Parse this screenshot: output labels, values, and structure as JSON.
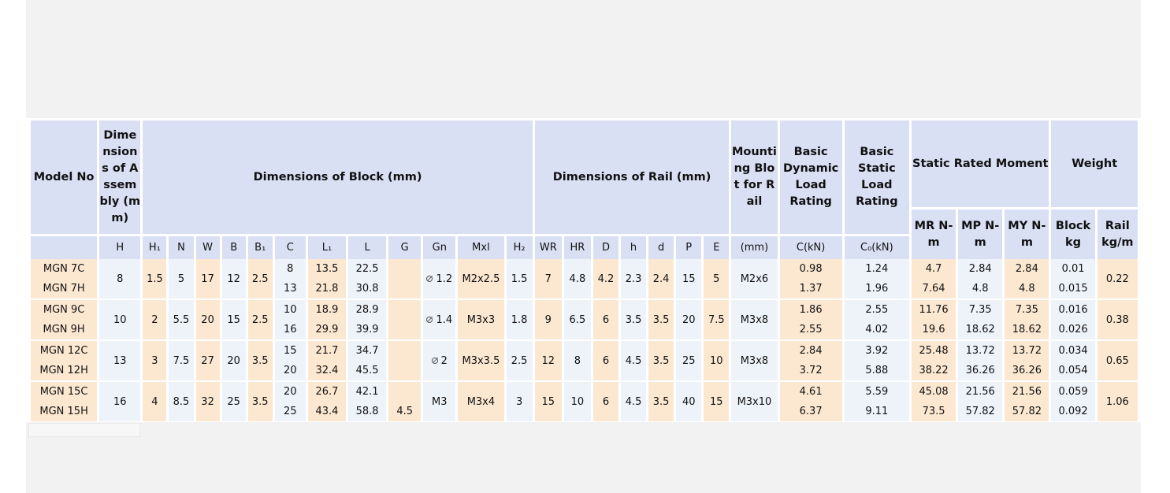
{
  "headers": {
    "model_no": "Model No",
    "assembly": "Dimensions of Assembly (mm)",
    "block": "Dimensions of Block (mm)",
    "rail": "Dimensions of Rail (mm)",
    "bolt": "Mounting Blot for Rail",
    "dynamic": "Basic Dynamic Load Rating",
    "static": "Basic Static Load Rating",
    "moment": "Static Rated Moment",
    "weight": "Weight",
    "mr": "MR N-m",
    "mp": "MP N-m",
    "my": "MY N-m",
    "block_kg": "Block kg",
    "rail_kgm": "Rail kg/m"
  },
  "subheaders": [
    "H",
    "H₁",
    "N",
    "W",
    "B",
    "B₁",
    "C",
    "L₁",
    "L",
    "G",
    "Gn",
    "Mxl",
    "H₂",
    "WR",
    "HR",
    "D",
    "h",
    "d",
    "P",
    "E",
    "(mm)",
    "C(kN)",
    "C₀(kN)"
  ],
  "groups": [
    {
      "H": "8",
      "H1": "1.5",
      "N": "5",
      "W": "17",
      "B": "12",
      "B1": "2.5",
      "Gn": "1.2",
      "Mxl": "M2x2.5",
      "H2": "1.5",
      "WR": "7",
      "HR": "4.8",
      "D": "4.2",
      "h": "2.3",
      "d": "2.4",
      "P": "15",
      "E": "5",
      "bolt": "M2x6",
      "rail_kgm": "0.22",
      "rows": [
        {
          "model": "MGN 7C",
          "C": "8",
          "L1": "13.5",
          "L": "22.5",
          "G": "",
          "Cdyn": "0.98",
          "C0": "1.24",
          "MR": "4.7",
          "MP": "2.84",
          "MY": "2.84",
          "block_kg": "0.01"
        },
        {
          "model": "MGN 7H",
          "C": "13",
          "L1": "21.8",
          "L": "30.8",
          "G": "",
          "Cdyn": "1.37",
          "C0": "1.96",
          "MR": "7.64",
          "MP": "4.8",
          "MY": "4.8",
          "block_kg": "0.015"
        }
      ]
    },
    {
      "H": "10",
      "H1": "2",
      "N": "5.5",
      "W": "20",
      "B": "15",
      "B1": "2.5",
      "Gn": "1.4",
      "Mxl": "M3x3",
      "H2": "1.8",
      "WR": "9",
      "HR": "6.5",
      "D": "6",
      "h": "3.5",
      "d": "3.5",
      "P": "20",
      "E": "7.5",
      "bolt": "M3x8",
      "rail_kgm": "0.38",
      "rows": [
        {
          "model": "MGN 9C",
          "C": "10",
          "L1": "18.9",
          "L": "28.9",
          "G": "",
          "Cdyn": "1.86",
          "C0": "2.55",
          "MR": "11.76",
          "MP": "7.35",
          "MY": "7.35",
          "block_kg": "0.016"
        },
        {
          "model": "MGN 9H",
          "C": "16",
          "L1": "29.9",
          "L": "39.9",
          "G": "",
          "Cdyn": "2.55",
          "C0": "4.02",
          "MR": "19.6",
          "MP": "18.62",
          "MY": "18.62",
          "block_kg": "0.026"
        }
      ]
    },
    {
      "H": "13",
      "H1": "3",
      "N": "7.5",
      "W": "27",
      "B": "20",
      "B1": "3.5",
      "Gn": "2",
      "Mxl": "M3x3.5",
      "H2": "2.5",
      "WR": "12",
      "HR": "8",
      "D": "6",
      "h": "4.5",
      "d": "3.5",
      "P": "25",
      "E": "10",
      "bolt": "M3x8",
      "rail_kgm": "0.65",
      "rows": [
        {
          "model": "MGN 12C",
          "C": "15",
          "L1": "21.7",
          "L": "34.7",
          "G": "",
          "Cdyn": "2.84",
          "C0": "3.92",
          "MR": "25.48",
          "MP": "13.72",
          "MY": "13.72",
          "block_kg": "0.034"
        },
        {
          "model": "MGN 12H",
          "C": "20",
          "L1": "32.4",
          "L": "45.5",
          "G": "",
          "Cdyn": "3.72",
          "C0": "5.88",
          "MR": "38.22",
          "MP": "36.26",
          "MY": "36.26",
          "block_kg": "0.054"
        }
      ]
    },
    {
      "H": "16",
      "H1": "4",
      "N": "8.5",
      "W": "32",
      "B": "25",
      "B1": "3.5",
      "Gn": "M3",
      "Mxl": "M3x4",
      "H2": "3",
      "WR": "15",
      "HR": "10",
      "D": "6",
      "h": "4.5",
      "d": "3.5",
      "P": "40",
      "E": "15",
      "bolt": "M3x10",
      "rail_kgm": "1.06",
      "rows": [
        {
          "model": "MGN 15C",
          "C": "20",
          "L1": "26.7",
          "L": "42.1",
          "G": "",
          "Cdyn": "4.61",
          "C0": "5.59",
          "MR": "45.08",
          "MP": "21.56",
          "MY": "21.56",
          "block_kg": "0.059"
        },
        {
          "model": "MGN 15H",
          "C": "25",
          "L1": "43.4",
          "L": "58.8",
          "G": "4.5",
          "Cdyn": "6.37",
          "C0": "9.11",
          "MR": "73.5",
          "MP": "57.82",
          "MY": "57.82",
          "block_kg": "0.092"
        }
      ]
    }
  ]
}
